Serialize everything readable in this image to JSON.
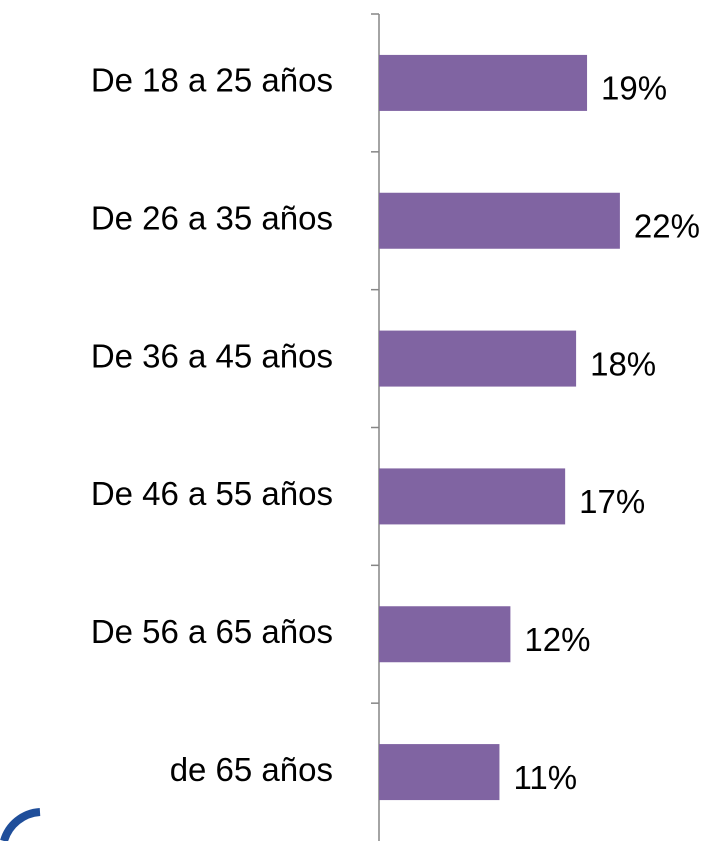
{
  "chart_data": {
    "type": "hbar",
    "categories": [
      "De 18 a 25 años",
      "De 26 a 35 años",
      "De 36 a 45 años",
      "De 46 a 55 años",
      "De 56 a 65 años",
      "de 65 años"
    ],
    "values": [
      19,
      22,
      18,
      17,
      12,
      11
    ],
    "value_labels": [
      "19%",
      "22%",
      "18%",
      "17%",
      "12%",
      "11%"
    ],
    "color": "#8064a2"
  }
}
